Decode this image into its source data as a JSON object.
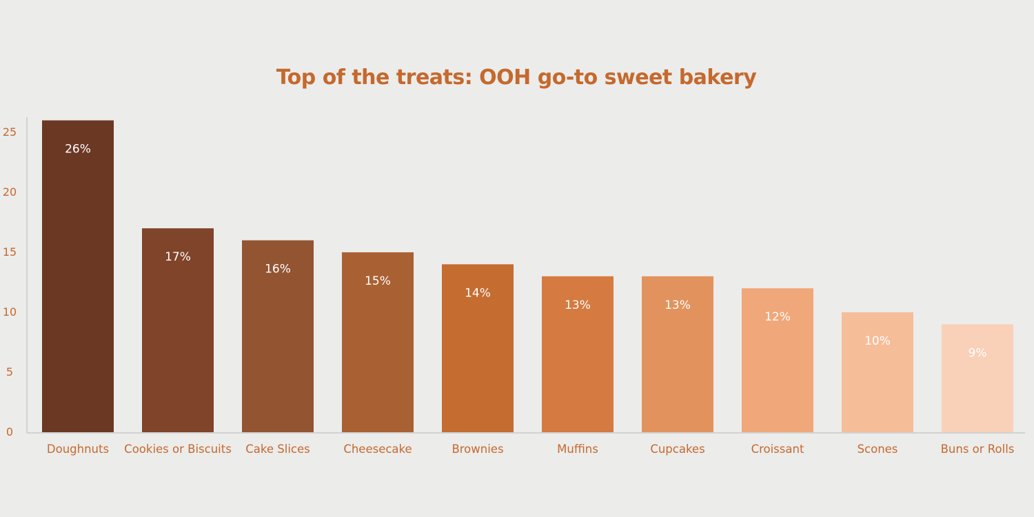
{
  "chart_data": {
    "type": "bar",
    "title": "Top of the treats: OOH go-to sweet bakery",
    "xlabel": "",
    "ylabel": "",
    "categories": [
      "Doughnuts",
      "Cookies or Biscuits",
      "Cake Slices",
      "Cheesecake",
      "Brownies",
      "Muffins",
      "Cupcakes",
      "Croissant",
      "Scones",
      "Buns or Rolls"
    ],
    "values": [
      26,
      17,
      16,
      15,
      14,
      13,
      13,
      12,
      10,
      9
    ],
    "data_labels": [
      "26%",
      "17%",
      "16%",
      "15%",
      "14%",
      "13%",
      "13%",
      "12%",
      "10%",
      "9%"
    ],
    "ylim": [
      0,
      26
    ],
    "yticks": [
      0,
      5,
      10,
      15,
      20,
      25
    ],
    "grid": false,
    "legend": "none",
    "colors": {
      "background": "#ececeb",
      "text_accent": "#c5692d",
      "axis_line": "#d2d2d2",
      "bars": [
        "#6b3823",
        "#7f4429",
        "#935432",
        "#a96133",
        "#c56c31",
        "#d57a40",
        "#e2935d",
        "#f0a779",
        "#f6bd99",
        "#f9d0b8"
      ],
      "value_label": "#ffffff"
    }
  }
}
